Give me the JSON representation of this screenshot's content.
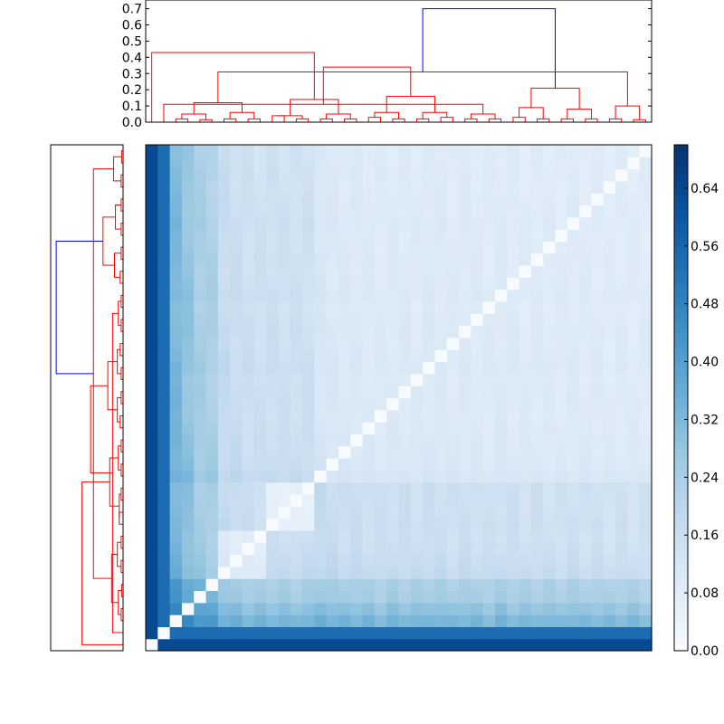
{
  "figure": {
    "type": "clustered-heatmap",
    "colormap": "Blues"
  },
  "chart_data": [
    {
      "type": "dendrogram",
      "position": "top",
      "ylim": [
        0,
        0.72
      ],
      "yticks": [
        "0.0",
        "0.1",
        "0.2",
        "0.3",
        "0.4",
        "0.5",
        "0.6",
        "0.7"
      ],
      "link_colors": [
        "#0000ff",
        "#008000",
        "#ff0000"
      ],
      "leaf_count": 42,
      "merges": [
        {
          "a": 2,
          "b": 3,
          "h": 0.02
        },
        {
          "a": 4,
          "b": 5,
          "h": 0.015
        },
        {
          "a": 6,
          "b": 7,
          "h": 0.02
        },
        {
          "a": 8,
          "b": 9,
          "h": 0.02
        },
        {
          "a": 10,
          "b": 11,
          "h": 0.04
        },
        {
          "a": 12,
          "b": 13,
          "h": 0.02
        },
        {
          "a": 14,
          "b": 15,
          "h": 0.02
        },
        {
          "a": 16,
          "b": 17,
          "h": 0.02
        },
        {
          "a": 18,
          "b": 19,
          "h": 0.03
        },
        {
          "a": 20,
          "b": 21,
          "h": 0.02
        },
        {
          "a": 22,
          "b": 23,
          "h": 0.02
        },
        {
          "a": 24,
          "b": 25,
          "h": 0.03
        },
        {
          "a": 26,
          "b": 27,
          "h": 0.02
        },
        {
          "a": 28,
          "b": 29,
          "h": 0.02
        },
        {
          "a": 30,
          "b": 31,
          "h": 0.03
        },
        {
          "a": 32,
          "b": 33,
          "h": 0.02
        },
        {
          "a": 34,
          "b": 35,
          "h": 0.02
        },
        {
          "a": 36,
          "b": 37,
          "h": 0.02
        },
        {
          "a": 38,
          "b": 39,
          "h": 0.02
        },
        {
          "a": 40,
          "b": 41,
          "h": 0.015
        },
        {
          "a": 42,
          "b": 43,
          "h": 0.05
        },
        {
          "a": 44,
          "b": 45,
          "h": 0.06
        },
        {
          "a": 46,
          "b": 47,
          "h": 0.04
        },
        {
          "a": 48,
          "b": 49,
          "h": 0.05
        },
        {
          "a": 50,
          "b": 51,
          "h": 0.06
        },
        {
          "a": 52,
          "b": 53,
          "h": 0.06
        },
        {
          "a": 54,
          "b": 55,
          "h": 0.05
        },
        {
          "a": 56,
          "b": 57,
          "h": 0.09
        },
        {
          "a": 58,
          "b": 59,
          "h": 0.08
        },
        {
          "a": 60,
          "b": 61,
          "h": 0.1
        },
        {
          "a": 62,
          "b": 63,
          "h": 0.12
        },
        {
          "a": 64,
          "b": 65,
          "h": 0.14
        },
        {
          "a": 66,
          "b": 67,
          "h": 0.16
        },
        {
          "a": 68,
          "b": 1,
          "h": 0.11
        },
        {
          "a": 69,
          "b": 70,
          "h": 0.21
        },
        {
          "a": 71,
          "b": 72,
          "h": 0.31
        },
        {
          "a": 0,
          "b": 73,
          "h": 0.43
        },
        {
          "a": 74,
          "b": 75,
          "h": 0.34
        },
        {
          "a": 76,
          "b": 77,
          "h": 0.7
        }
      ]
    },
    {
      "type": "dendrogram",
      "position": "left",
      "link_colors": [
        "#0000ff",
        "#008000",
        "#ff0000"
      ],
      "leaf_count": 42
    },
    {
      "type": "heatmap",
      "rows": 42,
      "cols": 42,
      "vmin": 0.0,
      "vmax": 0.7,
      "base": [
        0.7,
        0.6,
        0.5,
        0.42,
        0.34,
        0.32,
        0.2,
        0.18,
        0.16,
        0.15,
        0.16,
        0.15,
        0.15,
        0.15,
        0.2,
        0.17,
        0.16,
        0.16,
        0.15,
        0.14,
        0.15,
        0.15,
        0.14,
        0.16,
        0.15,
        0.14,
        0.15,
        0.14,
        0.13,
        0.15,
        0.14,
        0.13,
        0.14,
        0.13,
        0.13,
        0.14,
        0.13,
        0.13,
        0.12,
        0.13,
        0.12,
        0.12
      ],
      "blocks": [
        {
          "from": 6,
          "to": 9,
          "factor": 0.5
        },
        {
          "from": 10,
          "to": 13,
          "factor": 0.4
        },
        {
          "from": 14,
          "to": 41,
          "factor": 0.65
        }
      ],
      "colorbar": {
        "ticks": [
          "0.00",
          "0.08",
          "0.16",
          "0.24",
          "0.32",
          "0.40",
          "0.48",
          "0.56",
          "0.64"
        ],
        "tick_values": [
          0.0,
          0.08,
          0.16,
          0.24,
          0.32,
          0.4,
          0.48,
          0.56,
          0.64
        ]
      }
    }
  ]
}
